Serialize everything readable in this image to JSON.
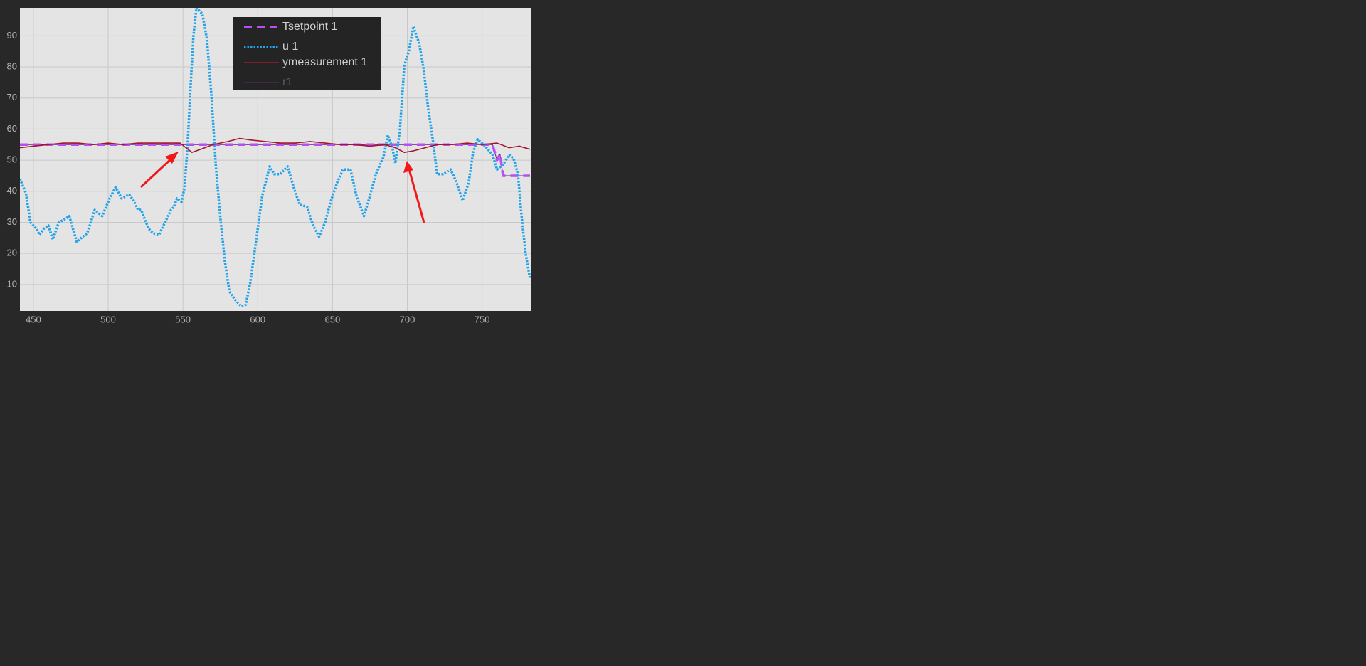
{
  "chart_data": {
    "type": "line",
    "xlim": [
      441,
      783
    ],
    "ylim": [
      1.5,
      99
    ],
    "xticks": [
      450,
      500,
      550,
      600,
      650,
      700,
      750
    ],
    "yticks": [
      10,
      20,
      30,
      40,
      50,
      60,
      70,
      80,
      90
    ],
    "grid": true,
    "legend": "top",
    "series": [
      {
        "name": "Tsetpoint 1",
        "color": "#b84ff0",
        "style": "dashed",
        "x": [
          441,
          757,
          760,
          762,
          764,
          782
        ],
        "values": [
          55,
          55,
          50,
          52,
          45,
          45
        ]
      },
      {
        "name": "u 1",
        "color": "#21a3ea",
        "style": "dotted",
        "x": [
          441,
          445,
          448,
          452,
          454,
          457,
          460,
          463,
          467,
          471,
          474,
          479,
          483,
          486,
          491,
          496,
          501,
          505,
          509,
          514,
          517,
          520,
          522,
          527,
          530,
          534,
          538,
          542,
          544,
          546,
          549,
          551,
          553,
          555,
          557,
          559,
          563,
          566,
          569,
          572,
          575,
          578,
          581,
          585,
          589,
          592,
          595,
          599,
          603,
          608,
          611,
          615,
          620,
          624,
          628,
          633,
          637,
          641,
          645,
          649,
          653,
          657,
          662,
          666,
          671,
          675,
          679,
          684,
          687,
          690,
          692,
          695,
          698,
          701,
          704,
          708,
          711,
          714,
          717,
          720,
          724,
          729,
          733,
          737,
          741,
          744,
          747,
          751,
          753,
          757,
          760,
          764,
          768,
          771,
          774,
          776,
          779,
          782
        ],
        "values": [
          44,
          39.4,
          30,
          28,
          26,
          28,
          29,
          24.5,
          30,
          31,
          32,
          23.7,
          25.4,
          26.5,
          34,
          32,
          37.7,
          41.3,
          37.7,
          39,
          37,
          34,
          34,
          28,
          26.5,
          26,
          30,
          34,
          35,
          37.7,
          36.6,
          41,
          54,
          73,
          90,
          99,
          97,
          89,
          71,
          48,
          31.5,
          17.5,
          7.8,
          5,
          3,
          3.5,
          10.6,
          24.5,
          38.5,
          48,
          45.5,
          45.5,
          48,
          41.3,
          35.7,
          35,
          29,
          25.4,
          30,
          37,
          42.7,
          47,
          47,
          38.5,
          32,
          38.5,
          45.5,
          51,
          58,
          54,
          49,
          59.5,
          80.5,
          85,
          93,
          87.5,
          79,
          66.5,
          56.7,
          45.5,
          45.5,
          47,
          42.7,
          37,
          42.7,
          52.5,
          56.7,
          55,
          54,
          51.7,
          47,
          48.5,
          51.7,
          50.6,
          45.5,
          34,
          20.3,
          12
        ]
      },
      {
        "name": "ymeasurement 1",
        "color": "#a3162c",
        "style": "solid",
        "x": [
          441,
          450,
          460,
          470,
          480,
          490,
          500,
          510,
          520,
          530,
          540,
          548,
          552,
          556,
          562,
          570,
          580,
          588,
          595,
          605,
          615,
          625,
          635,
          645,
          655,
          665,
          675,
          685,
          692,
          698,
          704,
          712,
          720,
          730,
          740,
          750,
          760,
          768,
          775,
          782
        ],
        "values": [
          54,
          54.5,
          55,
          55.5,
          55.5,
          55,
          55.5,
          55,
          55.5,
          55.5,
          55.5,
          55.5,
          54,
          52.5,
          53.5,
          55,
          56,
          57,
          56.5,
          56,
          55.5,
          55.5,
          56,
          55.5,
          55,
          55,
          54.5,
          55,
          54,
          52.5,
          53,
          54,
          55,
          55,
          55.5,
          55,
          55.5,
          54,
          54.5,
          53.5
        ]
      },
      {
        "name": "r1",
        "color": "#5b2c7c",
        "style": "thin",
        "x": [
          441,
          757,
          760,
          762,
          764,
          782
        ],
        "values": [
          55,
          55,
          50,
          52,
          45,
          45
        ]
      }
    ]
  }
}
